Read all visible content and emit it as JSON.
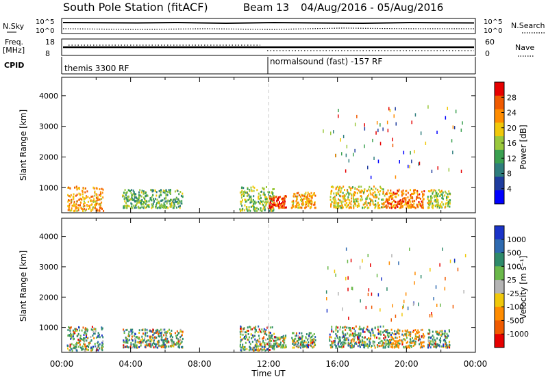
{
  "header": {
    "station": "South Pole Station (fitACF)",
    "beam": "Beam 13",
    "date_range": "04/Aug/2016 - 05/Aug/2016"
  },
  "strip_labels": {
    "nsky": "N.Sky",
    "freq": "Freq.",
    "freq_unit": "[MHz]",
    "cpid": "CPID",
    "nsearch": "N.Search",
    "nave": "Nave",
    "nsky_ticks": [
      "10^5",
      "10^0"
    ],
    "freq_ticks": [
      "18",
      "8"
    ],
    "nave_ticks": [
      "60",
      "0"
    ]
  },
  "cpid_segments": [
    {
      "label": "themis 3300 RF",
      "start_hour": 0
    },
    {
      "label": "normalsound (fast) -157 RF",
      "start_hour": 12
    }
  ],
  "colors": {
    "power": [
      "#0000ff",
      "#1e3c9e",
      "#2e7d7d",
      "#3aa050",
      "#9ac83c",
      "#f0c80a",
      "#ff8c00",
      "#f05a00",
      "#e60000"
    ],
    "velocity": [
      "#1a33c8",
      "#2e6ab0",
      "#2e8a6a",
      "#6ab84a",
      "#b4b4b4",
      "#f0c80a",
      "#ff8c00",
      "#f05a00",
      "#e60000"
    ]
  },
  "chart_data": [
    {
      "type": "heatmap",
      "name": "power",
      "ylabel": "Slant Range [km]",
      "yticks": [
        "1000",
        "2000",
        "3000",
        "4000"
      ],
      "ylim": [
        180,
        4600
      ],
      "xlim": [
        0,
        24
      ],
      "colorbar_label": "Power [dB]",
      "colorbar_ticks": [
        "4",
        "8",
        "12",
        "16",
        "20",
        "24",
        "28"
      ],
      "colorbar_range": [
        0,
        30
      ],
      "description_regions": [
        {
          "hours": [
            0.3,
            2.4
          ],
          "range_km": [
            200,
            1000
          ],
          "level": 22
        },
        {
          "hours": [
            3.5,
            7.0
          ],
          "range_km": [
            300,
            900
          ],
          "level": 12
        },
        {
          "hours": [
            10.3,
            12.3
          ],
          "range_km": [
            200,
            1000
          ],
          "level": 14
        },
        {
          "hours": [
            12.0,
            13.0
          ],
          "range_km": [
            300,
            700
          ],
          "level": 28
        },
        {
          "hours": [
            13.3,
            14.7
          ],
          "range_km": [
            300,
            800
          ],
          "level": 22
        },
        {
          "hours": [
            15.5,
            18.7
          ],
          "range_km": [
            300,
            1000
          ],
          "level": 18
        },
        {
          "hours": [
            18.7,
            21.0
          ],
          "range_km": [
            300,
            900
          ],
          "level": 24
        },
        {
          "hours": [
            21.2,
            22.5
          ],
          "range_km": [
            300,
            900
          ],
          "level": 16
        }
      ]
    },
    {
      "type": "heatmap",
      "name": "velocity",
      "xlabel": "Time UT",
      "ylabel": "Slant Range [km]",
      "xticks": [
        "00:00",
        "04:00",
        "08:00",
        "12:00",
        "16:00",
        "20:00",
        "00:00"
      ],
      "yticks": [
        "1000",
        "2000",
        "3000",
        "4000"
      ],
      "ylim": [
        180,
        4600
      ],
      "xlim": [
        0,
        24
      ],
      "colorbar_label": "Velocity [m s⁻¹]",
      "colorbar_ticks": [
        "1000",
        "500",
        "100",
        "25",
        "-25",
        "-100",
        "-500",
        "-1000"
      ]
    }
  ]
}
